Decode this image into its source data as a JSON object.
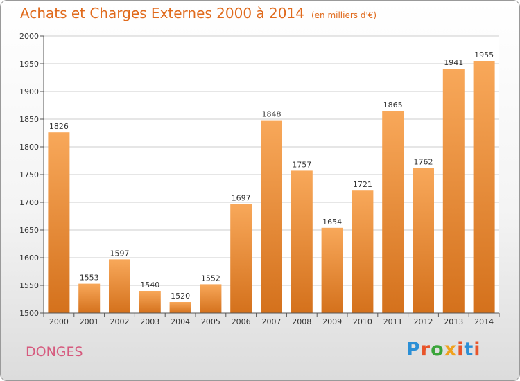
{
  "title": "Achats et Charges Externes 2000 à 2014",
  "subtitle": "(en milliers d'€)",
  "city": "DONGES",
  "logo": {
    "text": "Proxiti",
    "letter_colors": [
      "#2b8fd6",
      "#e8542a",
      "#3aa53a",
      "#f0a11c",
      "#e8542a",
      "#2b8fd6",
      "#e8542a"
    ]
  },
  "colors": {
    "title": "#e06a1c",
    "city": "#d65a7e",
    "bar_top": "#f8a85a",
    "bar_bottom": "#d4711c",
    "grid": "#cccccc",
    "axis": "#555555"
  },
  "chart_data": {
    "type": "bar",
    "categories": [
      "2000",
      "2001",
      "2002",
      "2003",
      "2004",
      "2005",
      "2006",
      "2007",
      "2008",
      "2009",
      "2010",
      "2011",
      "2012",
      "2013",
      "2014"
    ],
    "values": [
      1826,
      1553,
      1597,
      1540,
      1520,
      1552,
      1697,
      1848,
      1757,
      1654,
      1721,
      1865,
      1762,
      1941,
      1955
    ],
    "ylim": [
      1500,
      2000
    ],
    "yticks": [
      1500,
      1550,
      1600,
      1650,
      1700,
      1750,
      1800,
      1850,
      1900,
      1950,
      2000
    ],
    "grid": true
  }
}
